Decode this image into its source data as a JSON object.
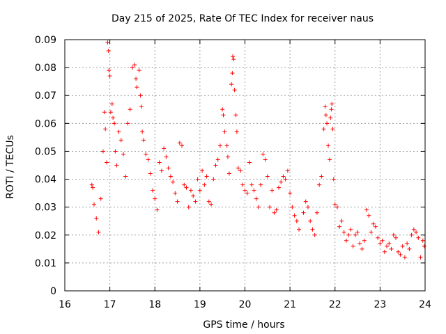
{
  "chart_data": {
    "type": "scatter",
    "title": "Day 215 of 2025, Rate Of TEC Index for receiver naus",
    "xlabel": "GPS time / hours",
    "ylabel": "ROTI / TECUs",
    "xlim": [
      16,
      24
    ],
    "ylim": [
      0,
      0.09
    ],
    "xticks": [
      "16",
      "17",
      "18",
      "19",
      "20",
      "21",
      "22",
      "23",
      "24"
    ],
    "yticks": [
      "0",
      "0.01",
      "0.02",
      "0.03",
      "0.04",
      "0.05",
      "0.06",
      "0.07",
      "0.08",
      "0.09"
    ],
    "grid": true,
    "marker": "+",
    "color": "#ff0000",
    "series": [
      {
        "points": [
          [
            16.6,
            0.038
          ],
          [
            16.62,
            0.037
          ],
          [
            16.65,
            0.031
          ],
          [
            16.7,
            0.026
          ],
          [
            16.75,
            0.021
          ],
          [
            16.8,
            0.033
          ],
          [
            16.85,
            0.05
          ],
          [
            16.88,
            0.064
          ],
          [
            16.9,
            0.058
          ],
          [
            16.93,
            0.046
          ],
          [
            16.95,
            0.089
          ],
          [
            16.97,
            0.086
          ],
          [
            16.98,
            0.079
          ],
          [
            17.0,
            0.077
          ],
          [
            17.02,
            0.064
          ],
          [
            17.05,
            0.067
          ],
          [
            17.07,
            0.062
          ],
          [
            17.1,
            0.06
          ],
          [
            17.12,
            0.05
          ],
          [
            17.15,
            0.045
          ],
          [
            17.2,
            0.057
          ],
          [
            17.25,
            0.054
          ],
          [
            17.3,
            0.049
          ],
          [
            17.35,
            0.041
          ],
          [
            17.4,
            0.06
          ],
          [
            17.45,
            0.065
          ],
          [
            17.5,
            0.08
          ],
          [
            17.55,
            0.081
          ],
          [
            17.58,
            0.076
          ],
          [
            17.6,
            0.073
          ],
          [
            17.65,
            0.079
          ],
          [
            17.68,
            0.07
          ],
          [
            17.7,
            0.066
          ],
          [
            17.72,
            0.057
          ],
          [
            17.75,
            0.054
          ],
          [
            17.8,
            0.049
          ],
          [
            17.85,
            0.047
          ],
          [
            17.9,
            0.042
          ],
          [
            17.95,
            0.036
          ],
          [
            18.0,
            0.033
          ],
          [
            18.05,
            0.029
          ],
          [
            18.1,
            0.046
          ],
          [
            18.15,
            0.043
          ],
          [
            18.2,
            0.051
          ],
          [
            18.25,
            0.048
          ],
          [
            18.3,
            0.044
          ],
          [
            18.35,
            0.041
          ],
          [
            18.4,
            0.039
          ],
          [
            18.45,
            0.035
          ],
          [
            18.5,
            0.032
          ],
          [
            18.55,
            0.053
          ],
          [
            18.6,
            0.052
          ],
          [
            18.65,
            0.038
          ],
          [
            18.7,
            0.037
          ],
          [
            18.75,
            0.03
          ],
          [
            18.8,
            0.036
          ],
          [
            18.85,
            0.034
          ],
          [
            18.9,
            0.032
          ],
          [
            18.95,
            0.04
          ],
          [
            19.0,
            0.036
          ],
          [
            19.05,
            0.043
          ],
          [
            19.1,
            0.038
          ],
          [
            19.15,
            0.041
          ],
          [
            19.2,
            0.032
          ],
          [
            19.25,
            0.031
          ],
          [
            19.3,
            0.04
          ],
          [
            19.35,
            0.045
          ],
          [
            19.4,
            0.047
          ],
          [
            19.45,
            0.052
          ],
          [
            19.5,
            0.065
          ],
          [
            19.52,
            0.063
          ],
          [
            19.55,
            0.057
          ],
          [
            19.6,
            0.052
          ],
          [
            19.62,
            0.048
          ],
          [
            19.65,
            0.042
          ],
          [
            19.7,
            0.074
          ],
          [
            19.72,
            0.078
          ],
          [
            19.73,
            0.084
          ],
          [
            19.75,
            0.083
          ],
          [
            19.77,
            0.072
          ],
          [
            19.8,
            0.063
          ],
          [
            19.82,
            0.057
          ],
          [
            19.85,
            0.044
          ],
          [
            19.9,
            0.043
          ],
          [
            19.95,
            0.038
          ],
          [
            20.0,
            0.036
          ],
          [
            20.05,
            0.035
          ],
          [
            20.1,
            0.046
          ],
          [
            20.15,
            0.038
          ],
          [
            20.2,
            0.036
          ],
          [
            20.25,
            0.033
          ],
          [
            20.3,
            0.03
          ],
          [
            20.35,
            0.038
          ],
          [
            20.4,
            0.049
          ],
          [
            20.45,
            0.047
          ],
          [
            20.5,
            0.041
          ],
          [
            20.55,
            0.03
          ],
          [
            20.6,
            0.036
          ],
          [
            20.65,
            0.028
          ],
          [
            20.7,
            0.029
          ],
          [
            20.75,
            0.037
          ],
          [
            20.8,
            0.039
          ],
          [
            20.85,
            0.041
          ],
          [
            20.9,
            0.04
          ],
          [
            20.95,
            0.043
          ],
          [
            21.0,
            0.035
          ],
          [
            21.05,
            0.03
          ],
          [
            21.1,
            0.027
          ],
          [
            21.15,
            0.025
          ],
          [
            21.2,
            0.022
          ],
          [
            21.3,
            0.028
          ],
          [
            21.35,
            0.032
          ],
          [
            21.4,
            0.03
          ],
          [
            21.45,
            0.025
          ],
          [
            21.5,
            0.022
          ],
          [
            21.55,
            0.02
          ],
          [
            21.6,
            0.028
          ],
          [
            21.65,
            0.038
          ],
          [
            21.7,
            0.041
          ],
          [
            21.75,
            0.058
          ],
          [
            21.78,
            0.066
          ],
          [
            21.8,
            0.063
          ],
          [
            21.82,
            0.06
          ],
          [
            21.85,
            0.052
          ],
          [
            21.88,
            0.047
          ],
          [
            21.9,
            0.062
          ],
          [
            21.92,
            0.065
          ],
          [
            21.93,
            0.067
          ],
          [
            21.95,
            0.058
          ],
          [
            21.97,
            0.04
          ],
          [
            22.0,
            0.031
          ],
          [
            22.05,
            0.03
          ],
          [
            22.1,
            0.023
          ],
          [
            22.15,
            0.025
          ],
          [
            22.2,
            0.021
          ],
          [
            22.25,
            0.018
          ],
          [
            22.3,
            0.02
          ],
          [
            22.35,
            0.022
          ],
          [
            22.4,
            0.016
          ],
          [
            22.45,
            0.02
          ],
          [
            22.5,
            0.021
          ],
          [
            22.55,
            0.017
          ],
          [
            22.6,
            0.015
          ],
          [
            22.65,
            0.018
          ],
          [
            22.7,
            0.029
          ],
          [
            22.75,
            0.027
          ],
          [
            22.8,
            0.021
          ],
          [
            22.85,
            0.024
          ],
          [
            22.9,
            0.023
          ],
          [
            22.95,
            0.019
          ],
          [
            23.0,
            0.017
          ],
          [
            23.05,
            0.018
          ],
          [
            23.1,
            0.014
          ],
          [
            23.15,
            0.016
          ],
          [
            23.2,
            0.017
          ],
          [
            23.25,
            0.015
          ],
          [
            23.3,
            0.02
          ],
          [
            23.35,
            0.019
          ],
          [
            23.4,
            0.014
          ],
          [
            23.45,
            0.013
          ],
          [
            23.5,
            0.016
          ],
          [
            23.55,
            0.012
          ],
          [
            23.6,
            0.017
          ],
          [
            23.65,
            0.015
          ],
          [
            23.7,
            0.02
          ],
          [
            23.75,
            0.022
          ],
          [
            23.8,
            0.021
          ],
          [
            23.85,
            0.019
          ],
          [
            23.9,
            0.012
          ],
          [
            23.95,
            0.018
          ],
          [
            23.98,
            0.016
          ]
        ]
      }
    ]
  }
}
